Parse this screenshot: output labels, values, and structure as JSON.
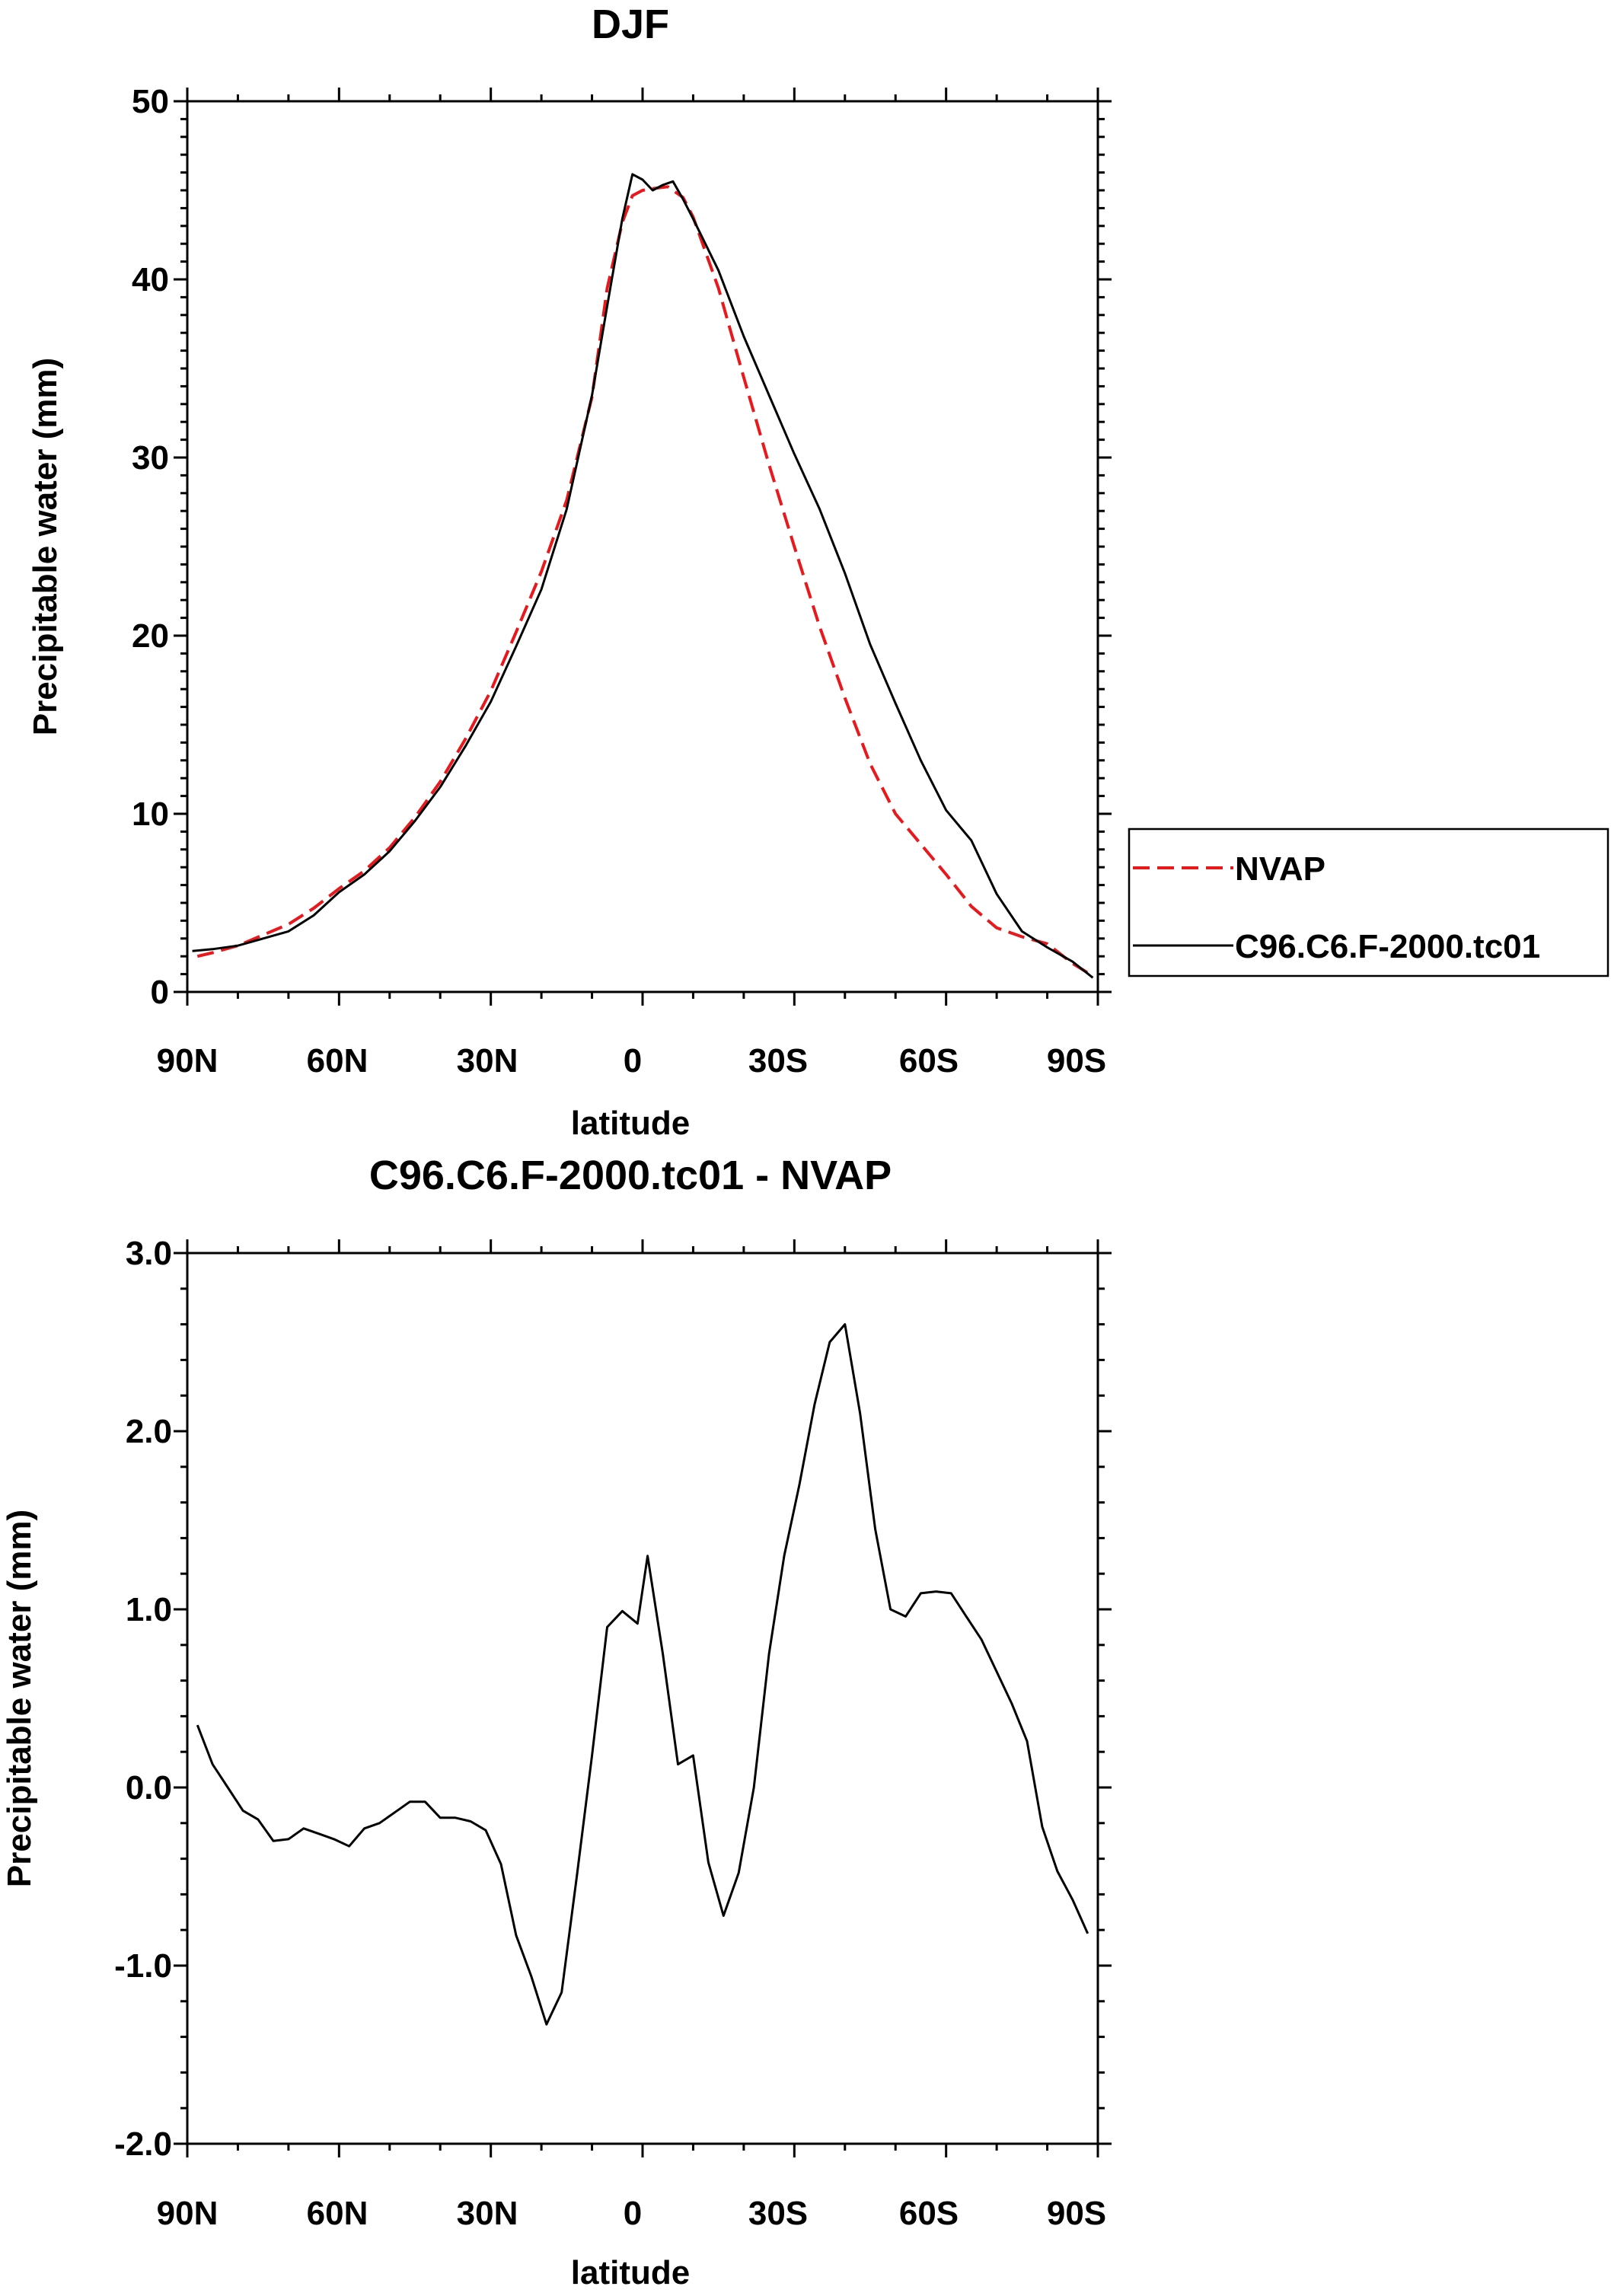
{
  "chart_data": [
    {
      "type": "line",
      "title": "DJF",
      "xlabel": "latitude",
      "ylabel": "Precipitable water (mm)",
      "xlim": [
        -90,
        90
      ],
      "ylim": [
        0,
        50
      ],
      "x_tick_values": [
        -90,
        -60,
        -30,
        0,
        30,
        60,
        90
      ],
      "x_tick_labels": [
        "90N",
        "60N",
        "30N",
        "0",
        "30S",
        "60S",
        "90S"
      ],
      "y_tick_values": [
        0,
        10,
        20,
        30,
        40,
        50
      ],
      "y_tick_labels": [
        "0",
        "10",
        "20",
        "30",
        "40",
        "50"
      ],
      "legend_position": "right",
      "series": [
        {
          "name": "NVAP",
          "color": "#e8181c",
          "dash": "dashed",
          "x": [
            -88,
            -85,
            -80,
            -75,
            -70,
            -65,
            -60,
            -55,
            -50,
            -45,
            -40,
            -35,
            -30,
            -25,
            -20,
            -15,
            -10,
            -7,
            -4,
            -2,
            0,
            2,
            5,
            8,
            10,
            15,
            20,
            25,
            30,
            35,
            40,
            45,
            50,
            55,
            60,
            65,
            70,
            75,
            80,
            85,
            89
          ],
          "values": [
            2.0,
            2.2,
            2.6,
            3.2,
            3.8,
            4.7,
            5.8,
            6.8,
            8.1,
            9.8,
            11.8,
            14.2,
            16.9,
            20.2,
            23.6,
            27.6,
            33.4,
            39.5,
            43.2,
            44.7,
            45.0,
            45.1,
            45.2,
            44.6,
            43.5,
            39.5,
            34.5,
            29.6,
            25.0,
            20.5,
            16.5,
            12.8,
            10.0,
            8.3,
            6.6,
            4.8,
            3.6,
            3.1,
            2.7,
            1.6,
            0.9
          ]
        },
        {
          "name": "C96.C6.F-2000.tc01",
          "color": "#000000",
          "dash": "solid",
          "x": [
            -89,
            -85,
            -80,
            -75,
            -70,
            -65,
            -60,
            -55,
            -50,
            -45,
            -40,
            -35,
            -30,
            -25,
            -20,
            -15,
            -10,
            -7,
            -4,
            -2,
            0,
            2,
            4,
            6,
            8,
            10,
            15,
            20,
            25,
            30,
            35,
            40,
            45,
            50,
            55,
            60,
            65,
            70,
            75,
            80,
            85,
            89
          ],
          "values": [
            2.3,
            2.4,
            2.6,
            3.0,
            3.4,
            4.3,
            5.6,
            6.6,
            7.9,
            9.6,
            11.5,
            13.8,
            16.3,
            19.4,
            22.6,
            27.1,
            33.5,
            38.5,
            43.4,
            45.9,
            45.6,
            45.0,
            45.3,
            45.5,
            44.5,
            43.4,
            40.5,
            36.8,
            33.5,
            30.2,
            27.1,
            23.5,
            19.5,
            16.2,
            13.0,
            10.2,
            8.5,
            5.5,
            3.4,
            2.5,
            1.7,
            0.8
          ]
        }
      ]
    },
    {
      "type": "line",
      "title": "C96.C6.F-2000.tc01 - NVAP",
      "xlabel": "latitude",
      "ylabel": "Precipitable water (mm)",
      "xlim": [
        -90,
        90
      ],
      "ylim": [
        -2.0,
        3.0
      ],
      "x_tick_values": [
        -90,
        -60,
        -30,
        0,
        30,
        60,
        90
      ],
      "x_tick_labels": [
        "90N",
        "60N",
        "30N",
        "0",
        "30S",
        "60S",
        "90S"
      ],
      "y_tick_values": [
        -2.0,
        -1.0,
        0.0,
        1.0,
        2.0,
        3.0
      ],
      "y_tick_labels": [
        "-2.0",
        "-1.0",
        "0.0",
        "1.0",
        "2.0",
        "3.0"
      ],
      "series": [
        {
          "name": "C96.C6.F-2000.tc01 - NVAP",
          "color": "#000000",
          "dash": "solid",
          "x": [
            -88,
            -85,
            -82,
            -79,
            -76,
            -73,
            -70,
            -67,
            -64,
            -61,
            -58,
            -55,
            -52,
            -49,
            -46,
            -43,
            -40,
            -37,
            -34,
            -31,
            -28,
            -25,
            -22,
            -19,
            -16,
            -13,
            -10,
            -7,
            -4,
            -1,
            1,
            4,
            7,
            10,
            13,
            16,
            19,
            22,
            25,
            28,
            31,
            34,
            37,
            40,
            43,
            46,
            49,
            52,
            55,
            58,
            61,
            64,
            67,
            70,
            73,
            76,
            79,
            82,
            85,
            88
          ],
          "values": [
            0.35,
            0.13,
            0.0,
            -0.13,
            -0.18,
            -0.3,
            -0.29,
            -0.23,
            -0.26,
            -0.29,
            -0.33,
            -0.23,
            -0.2,
            -0.14,
            -0.08,
            -0.08,
            -0.17,
            -0.17,
            -0.19,
            -0.24,
            -0.43,
            -0.83,
            -1.06,
            -1.33,
            -1.15,
            -0.5,
            0.18,
            0.9,
            0.99,
            0.92,
            1.3,
            0.75,
            0.13,
            0.18,
            -0.42,
            -0.72,
            -0.48,
            0.0,
            0.75,
            1.3,
            1.7,
            2.15,
            2.5,
            2.6,
            2.1,
            1.45,
            1.0,
            0.96,
            1.09,
            1.1,
            1.09,
            0.96,
            0.83,
            0.65,
            0.47,
            0.26,
            -0.22,
            -0.47,
            -0.63,
            -0.82
          ]
        }
      ]
    }
  ]
}
